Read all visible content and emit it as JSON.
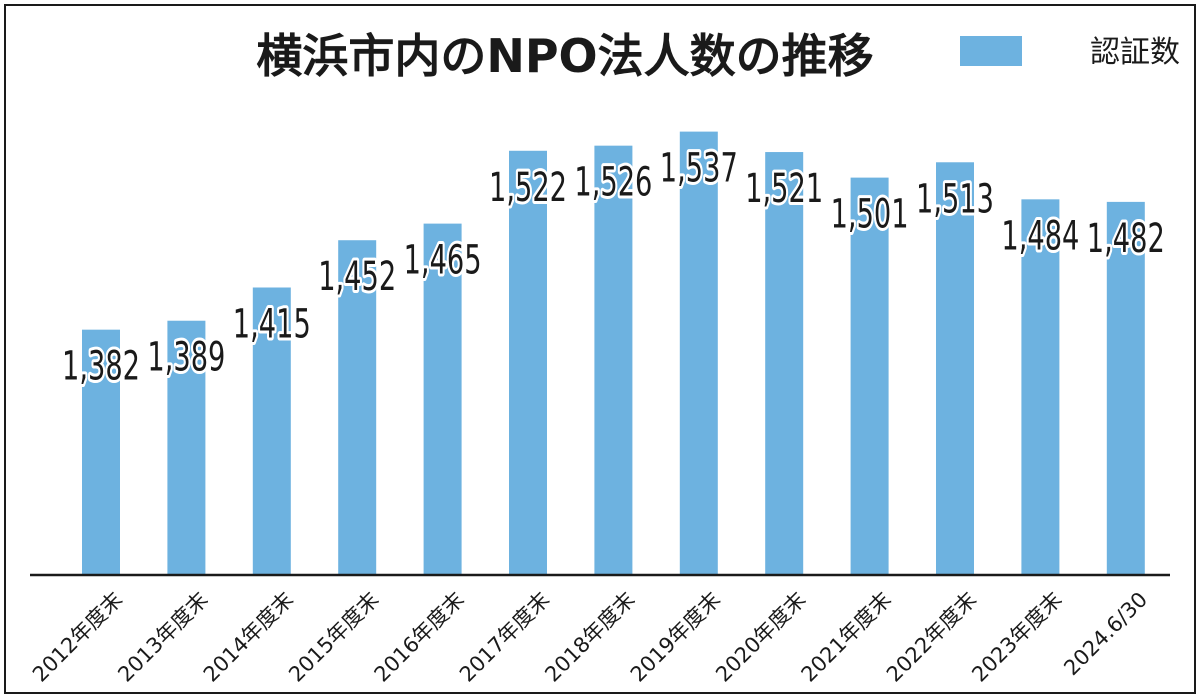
{
  "chart_data": {
    "type": "bar",
    "title": "横浜市内のNPO法人数の推移",
    "categories": [
      "2012年度末",
      "2013年度末",
      "2014年度末",
      "2015年度末",
      "2016年度末",
      "2017年度末",
      "2018年度末",
      "2019年度末",
      "2020年度末",
      "2021年度末",
      "2022年度末",
      "2023年度末",
      "2024.6/30"
    ],
    "series": [
      {
        "name": "認証数",
        "values": [
          1382,
          1389,
          1415,
          1452,
          1465,
          1522,
          1526,
          1537,
          1521,
          1501,
          1513,
          1484,
          1482
        ],
        "color": "#6db2e0"
      }
    ],
    "value_labels": [
      "1,382",
      "1,389",
      "1,415",
      "1,452",
      "1,465",
      "1,522",
      "1,526",
      "1,537",
      "1,521",
      "1,501",
      "1,513",
      "1,484",
      "1,482"
    ],
    "ylim": [
      1190,
      1550
    ],
    "grid": false,
    "legend_position": "top-right",
    "xlabel": "",
    "ylabel": ""
  }
}
